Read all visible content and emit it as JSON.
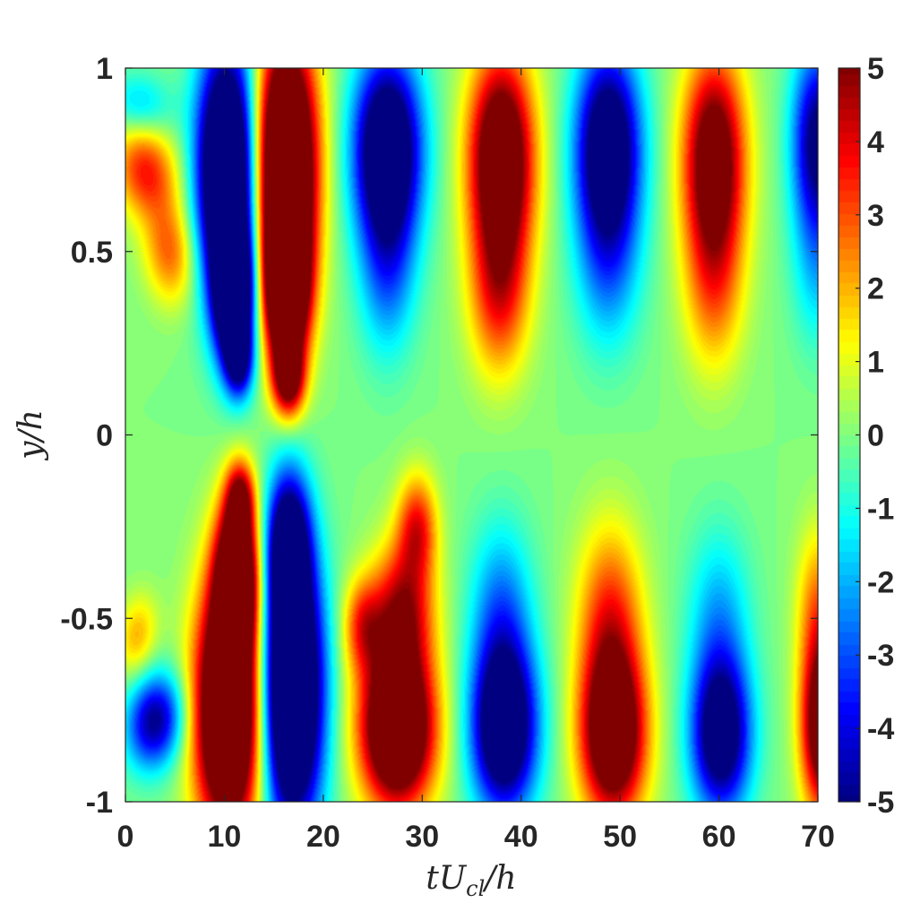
{
  "chart_data": {
    "type": "heatmap",
    "title": "",
    "xlabel": "tU_cl/h",
    "xlabel_parts": {
      "main": "tU",
      "sub": "cl",
      "tail": "/h"
    },
    "ylabel": "y/h",
    "xlim": [
      0,
      70
    ],
    "ylim": [
      -1,
      1
    ],
    "x_ticks": [
      0,
      10,
      20,
      30,
      40,
      50,
      60,
      70
    ],
    "x_tick_labels": [
      "0",
      "10",
      "20",
      "30",
      "40",
      "50",
      "60",
      "70"
    ],
    "y_ticks": [
      1,
      0.5,
      0,
      -0.5,
      -1
    ],
    "y_tick_labels": [
      "1",
      "0.5",
      "0",
      "-0.5",
      "-1"
    ],
    "colorbar": {
      "colormap": "jet",
      "clim": [
        -5,
        5
      ],
      "ticks": [
        5,
        4,
        3,
        2,
        1,
        0,
        -1,
        -2,
        -3,
        -4,
        -5
      ],
      "tick_labels": [
        "5",
        "4",
        "3",
        "2",
        "1",
        "0",
        "-1",
        "-2",
        "-3",
        "-4",
        "-5"
      ]
    },
    "features": [
      {
        "x": 2,
        "y": 0.72,
        "value": 3.5,
        "sx": 2.2,
        "sy": 0.09,
        "tilt": -0.32
      },
      {
        "x": 4.5,
        "y": 0.5,
        "value": 2.8,
        "sx": 1.8,
        "sy": 0.1,
        "tilt": -0.25
      },
      {
        "x": 1.5,
        "y": 0.9,
        "value": -1.8,
        "sx": 2.2,
        "sy": 0.06,
        "tilt": -0.4
      },
      {
        "x": 10.3,
        "y": 0.72,
        "value": -9.5,
        "sx": 2.1,
        "sy": 0.24,
        "tilt": 0
      },
      {
        "x": 11,
        "y": 0.38,
        "value": -8,
        "sx": 1.4,
        "sy": 0.13,
        "tilt": 0
      },
      {
        "x": 11.5,
        "y": 0.2,
        "value": -4,
        "sx": 1.0,
        "sy": 0.07,
        "tilt": 0
      },
      {
        "x": 16.2,
        "y": 0.75,
        "value": 10,
        "sx": 2.2,
        "sy": 0.24,
        "tilt": 0
      },
      {
        "x": 16.3,
        "y": 0.4,
        "value": 9,
        "sx": 1.6,
        "sy": 0.15,
        "tilt": 0
      },
      {
        "x": 16.5,
        "y": 0.15,
        "value": 5,
        "sx": 1.1,
        "sy": 0.07,
        "tilt": 0
      },
      {
        "x": 26.5,
        "y": 0.78,
        "value": -7.5,
        "sx": 2.4,
        "sy": 0.18,
        "tilt": 0
      },
      {
        "x": 26.5,
        "y": 0.45,
        "value": -2.5,
        "sx": 2.0,
        "sy": 0.17,
        "tilt": 0
      },
      {
        "x": 38,
        "y": 0.75,
        "value": 7.5,
        "sx": 2.3,
        "sy": 0.2,
        "tilt": 0
      },
      {
        "x": 37.8,
        "y": 0.38,
        "value": 3.2,
        "sx": 2.1,
        "sy": 0.16,
        "tilt": 0
      },
      {
        "x": 48.8,
        "y": 0.78,
        "value": -7,
        "sx": 2.3,
        "sy": 0.19,
        "tilt": 0
      },
      {
        "x": 48.8,
        "y": 0.45,
        "value": -2,
        "sx": 2.3,
        "sy": 0.17,
        "tilt": 0
      },
      {
        "x": 59.5,
        "y": 0.75,
        "value": 6.5,
        "sx": 2.2,
        "sy": 0.2,
        "tilt": 0
      },
      {
        "x": 59.5,
        "y": 0.4,
        "value": 2.3,
        "sx": 2.1,
        "sy": 0.17,
        "tilt": 0
      },
      {
        "x": 70,
        "y": 0.8,
        "value": -5.5,
        "sx": 1.8,
        "sy": 0.18,
        "tilt": 0
      },
      {
        "x": 70,
        "y": 0.45,
        "value": -1.5,
        "sx": 1.8,
        "sy": 0.16,
        "tilt": 0
      },
      {
        "x": 3,
        "y": -0.78,
        "value": -5,
        "sx": 2.0,
        "sy": 0.09,
        "tilt": 0.25
      },
      {
        "x": 1.2,
        "y": -0.55,
        "value": 2.0,
        "sx": 1.4,
        "sy": 0.08,
        "tilt": 0.3
      },
      {
        "x": 10.5,
        "y": -0.75,
        "value": 10,
        "sx": 2.4,
        "sy": 0.24,
        "tilt": 0
      },
      {
        "x": 11.3,
        "y": -0.38,
        "value": 8,
        "sx": 1.5,
        "sy": 0.14,
        "tilt": 0
      },
      {
        "x": 11.6,
        "y": -0.17,
        "value": 4,
        "sx": 1.0,
        "sy": 0.07,
        "tilt": 0
      },
      {
        "x": 16.8,
        "y": -0.7,
        "value": -10,
        "sx": 2.2,
        "sy": 0.26,
        "tilt": 0
      },
      {
        "x": 16.5,
        "y": -0.3,
        "value": -6,
        "sx": 1.5,
        "sy": 0.14,
        "tilt": 0
      },
      {
        "x": 27.5,
        "y": -0.8,
        "value": 9,
        "sx": 2.6,
        "sy": 0.15,
        "tilt": 0
      },
      {
        "x": 28,
        "y": -0.48,
        "value": 4.5,
        "sx": 2.2,
        "sy": 0.13,
        "tilt": 0
      },
      {
        "x": 29.5,
        "y": -0.25,
        "value": 3.5,
        "sx": 1.4,
        "sy": 0.1,
        "tilt": 0
      },
      {
        "x": 24,
        "y": -0.52,
        "value": 3,
        "sx": 1.4,
        "sy": 0.09,
        "tilt": 0
      },
      {
        "x": 38.3,
        "y": -0.8,
        "value": -7.5,
        "sx": 2.3,
        "sy": 0.16,
        "tilt": 0
      },
      {
        "x": 38,
        "y": -0.48,
        "value": -2.5,
        "sx": 2.2,
        "sy": 0.17,
        "tilt": 0
      },
      {
        "x": 49.3,
        "y": -0.82,
        "value": 7.5,
        "sx": 2.3,
        "sy": 0.16,
        "tilt": 0
      },
      {
        "x": 49,
        "y": -0.5,
        "value": 3.3,
        "sx": 2.3,
        "sy": 0.18,
        "tilt": 0
      },
      {
        "x": 60.2,
        "y": -0.82,
        "value": -6.5,
        "sx": 2.1,
        "sy": 0.15,
        "tilt": 0
      },
      {
        "x": 60,
        "y": -0.5,
        "value": -2,
        "sx": 2.2,
        "sy": 0.17,
        "tilt": 0
      },
      {
        "x": 70.5,
        "y": -0.8,
        "value": 7,
        "sx": 1.5,
        "sy": 0.16,
        "tilt": 0
      },
      {
        "x": 70,
        "y": -0.48,
        "value": 2.5,
        "sx": 1.5,
        "sy": 0.16,
        "tilt": 0
      }
    ]
  }
}
